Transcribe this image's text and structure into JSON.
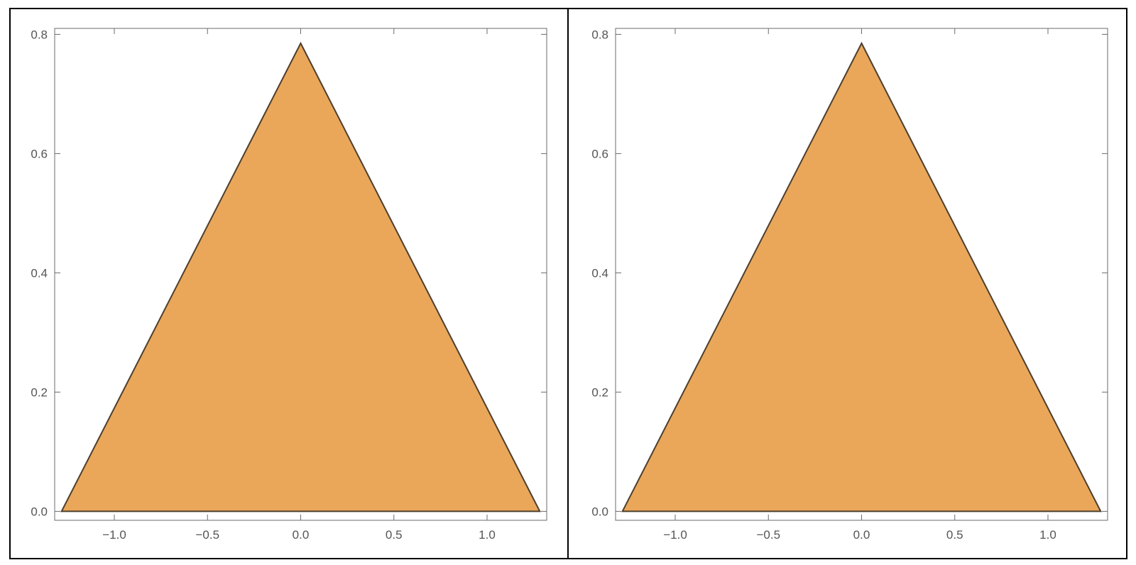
{
  "chart_data": [
    {
      "type": "contour",
      "title": "",
      "xlabel": "",
      "ylabel": "",
      "xlim": [
        -1.32,
        1.32
      ],
      "ylim": [
        -0.015,
        0.81
      ],
      "domain_shape": "equilateral-triangle",
      "domain_vertices": [
        [
          -1.283,
          0.0
        ],
        [
          1.283,
          0.0
        ],
        [
          0.0,
          0.785
        ]
      ],
      "grid": false,
      "x_ticks": [
        {
          "value": -1.0,
          "label": "−1.0"
        },
        {
          "value": -0.5,
          "label": "−0.5"
        },
        {
          "value": 0.0,
          "label": "0.0"
        },
        {
          "value": 0.5,
          "label": "0.5"
        },
        {
          "value": 1.0,
          "label": "1.0"
        }
      ],
      "y_ticks": [
        {
          "value": 0.0,
          "label": "0.0"
        },
        {
          "value": 0.2,
          "label": "0.2"
        },
        {
          "value": 0.4,
          "label": "0.4"
        },
        {
          "value": 0.6,
          "label": "0.6"
        },
        {
          "value": 0.8,
          "label": "0.8"
        }
      ],
      "symmetry": "symmetric",
      "x_modes": 8,
      "y_modes": 9,
      "blob_threshold": 0.55
    },
    {
      "type": "contour",
      "title": "",
      "xlabel": "",
      "ylabel": "",
      "xlim": [
        -1.32,
        1.32
      ],
      "ylim": [
        -0.015,
        0.81
      ],
      "domain_shape": "equilateral-triangle",
      "domain_vertices": [
        [
          -1.283,
          0.0
        ],
        [
          1.283,
          0.0
        ],
        [
          0.0,
          0.785
        ]
      ],
      "grid": false,
      "x_ticks": [
        {
          "value": -1.0,
          "label": "−1.0"
        },
        {
          "value": -0.5,
          "label": "−0.5"
        },
        {
          "value": 0.0,
          "label": "0.0"
        },
        {
          "value": 0.5,
          "label": "0.5"
        },
        {
          "value": 1.0,
          "label": "1.0"
        }
      ],
      "y_ticks": [
        {
          "value": 0.0,
          "label": "0.0"
        },
        {
          "value": 0.2,
          "label": "0.2"
        },
        {
          "value": 0.4,
          "label": "0.4"
        },
        {
          "value": 0.6,
          "label": "0.6"
        },
        {
          "value": 0.8,
          "label": "0.8"
        }
      ],
      "symmetry": "antisymmetric",
      "x_modes": 13,
      "y_modes": 8,
      "blob_threshold": 0.55
    }
  ],
  "colors": {
    "level_high": "#fdf3c4",
    "level_2": "#f9de9b",
    "level_3": "#f0bf69",
    "level_mid_light": "#eaa75a",
    "level_mid_dark": "#b68c63",
    "level_low_2": "#7c7588",
    "level_low": "#2b5594",
    "contour_line": "#4d3f2e",
    "frame": "#000000",
    "axis": "#6b6b6b"
  }
}
